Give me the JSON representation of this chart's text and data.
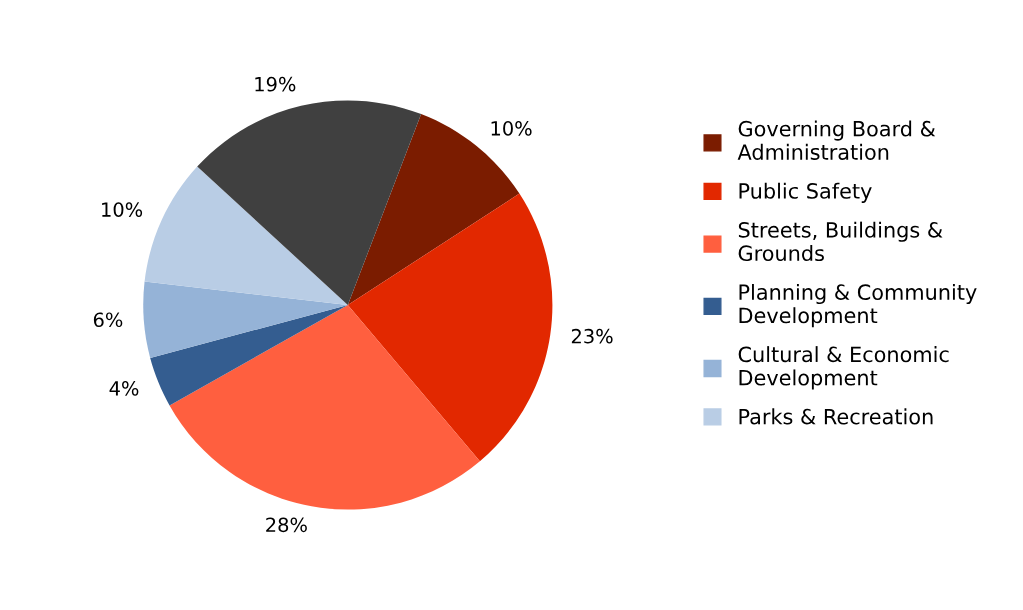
{
  "chart_data": {
    "type": "pie",
    "categories": [
      "Governing Board &\nAdministration",
      "Public Safety",
      "Streets, Buildings &\nGrounds",
      "Planning & Community\nDevelopment",
      "Cultural & Economic\nDevelopment",
      "Parks & Recreation",
      null
    ],
    "values": [
      10,
      23,
      28,
      4,
      6,
      10,
      19
    ],
    "value_labels": [
      "10%",
      "23%",
      "28%",
      "4%",
      "6%",
      "10%",
      "19%"
    ],
    "colors": [
      "#7b1c00",
      "#e22800",
      "#ff5f3f",
      "#345d90",
      "#95b3d7",
      "#b9cde5",
      "#404040"
    ],
    "legend": "right"
  }
}
